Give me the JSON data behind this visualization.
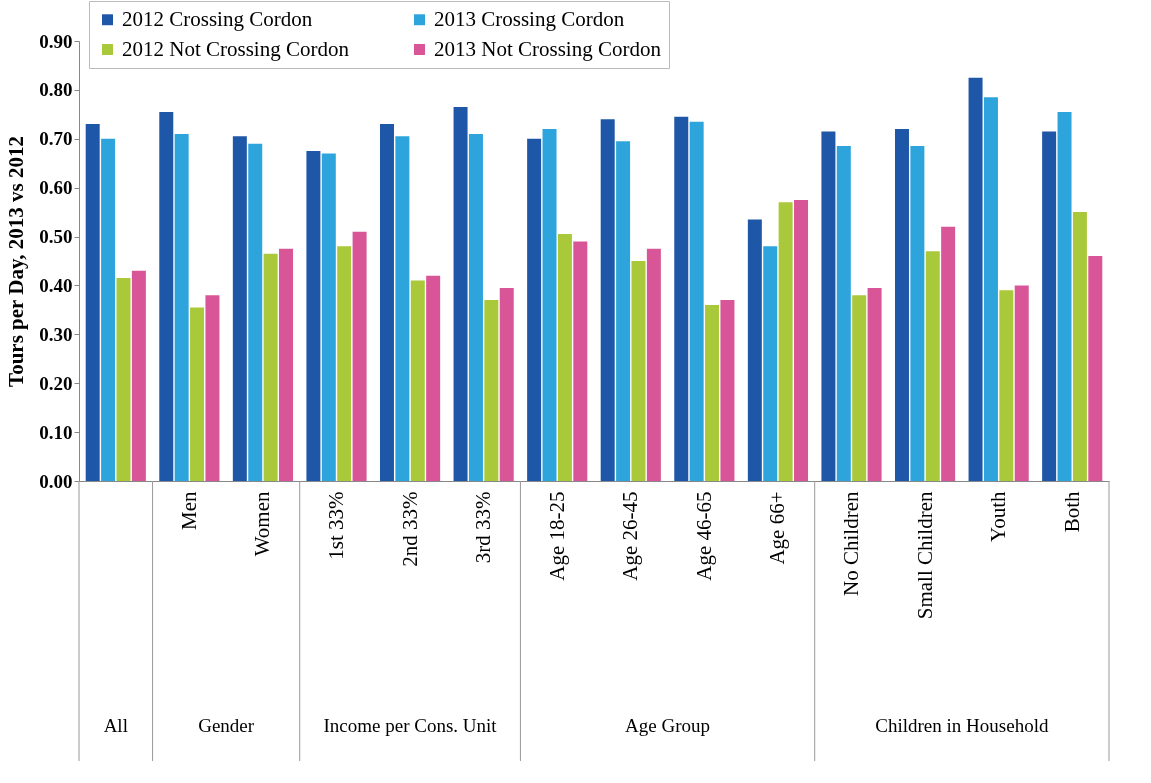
{
  "chart_data": {
    "type": "bar",
    "ylabel": "Tours per Day, 2013 vs 2012",
    "categories": [
      null,
      "Men",
      "Women",
      "1st 33%",
      "2nd 33%",
      "3rd 33%",
      "Age 18-25",
      "Age 26-45",
      "Age 46-65",
      "Age 66+",
      "No Children",
      "Small Children",
      "Youth",
      "Both"
    ],
    "annotations": [
      "All",
      "Gender",
      "Income per Cons. Unit",
      "Age Group",
      "Children in Household"
    ],
    "series": [
      {
        "name": "2012 Crossing Cordon",
        "color": "#1f57a8",
        "values": [
          0.73,
          0.755,
          0.705,
          0.675,
          0.73,
          0.765,
          0.7,
          0.74,
          0.745,
          0.535,
          0.715,
          0.72,
          0.825,
          0.715
        ]
      },
      {
        "name": "2013 Crossing Cordon",
        "color": "#2ea4dc",
        "values": [
          0.7,
          0.71,
          0.69,
          0.67,
          0.705,
          0.71,
          0.72,
          0.695,
          0.735,
          0.48,
          0.685,
          0.685,
          0.785,
          0.755
        ]
      },
      {
        "name": "2012 Not Crossing Cordon",
        "color": "#a9c93a",
        "values": [
          0.415,
          0.355,
          0.465,
          0.48,
          0.41,
          0.37,
          0.505,
          0.45,
          0.36,
          0.57,
          0.38,
          0.47,
          0.39,
          0.55
        ]
      },
      {
        "name": "2013 Not Crossing Cordon",
        "color": "#d85597",
        "values": [
          0.43,
          0.38,
          0.475,
          0.51,
          0.42,
          0.395,
          0.49,
          0.475,
          0.37,
          0.575,
          0.395,
          0.52,
          0.4,
          0.46
        ]
      }
    ],
    "ylim": [
      0,
      0.9
    ],
    "yticks": [
      {
        "value": 0,
        "label": "0.00"
      },
      {
        "value": 0.1,
        "label": "0.10"
      },
      {
        "value": 0.2,
        "label": "0.20"
      },
      {
        "value": 0.3,
        "label": "0.30"
      },
      {
        "value": 0.4,
        "label": "0.40"
      },
      {
        "value": 0.5,
        "label": "0.50"
      },
      {
        "value": 0.6,
        "label": "0.60"
      },
      {
        "value": 0.7,
        "label": "0.70"
      },
      {
        "value": 0.8,
        "label": "0.80"
      },
      {
        "value": 0.9,
        "label": "0.90"
      }
    ],
    "grid": false,
    "legend": "top left"
  }
}
